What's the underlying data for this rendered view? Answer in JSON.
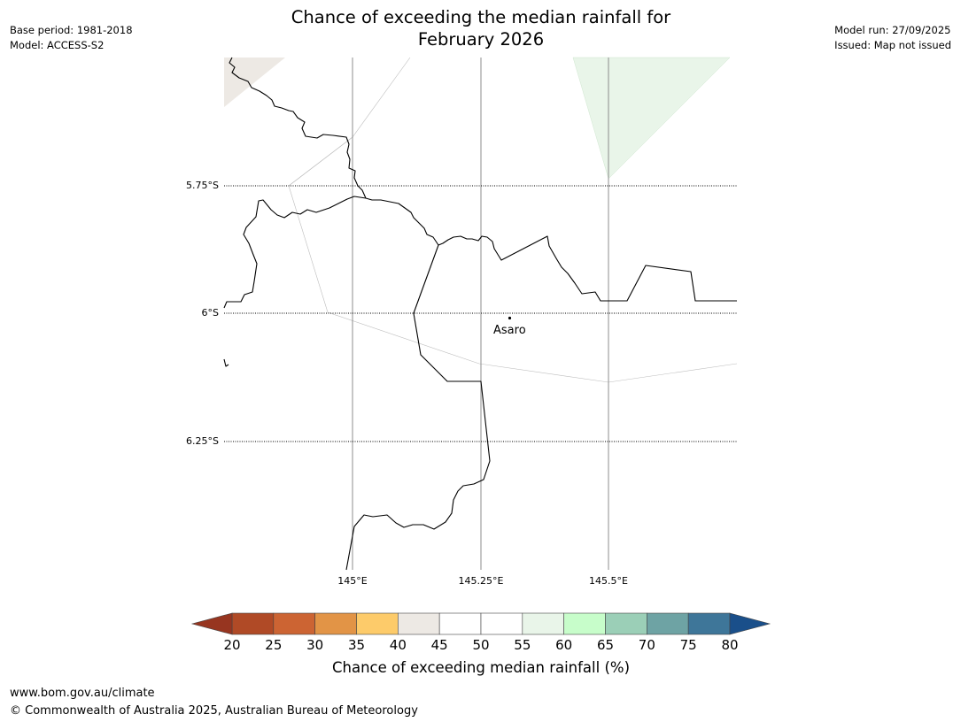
{
  "header": {
    "title_line1": "Chance of exceeding the median rainfall for",
    "title_line2": "February 2026",
    "base_period": "Base period: 1981-2018",
    "model": "Model: ACCESS-S2",
    "model_run": "Model run: 27/09/2025",
    "issued": "Issued: Map not issued"
  },
  "map": {
    "lat_labels": [
      "5.75°S",
      "6°S",
      "6.25°S"
    ],
    "lon_labels": [
      "145°E",
      "145.25°E",
      "145.5°E"
    ],
    "place": "Asaro",
    "colors": {
      "coast": "#000000",
      "gridline": "#8c8c8c",
      "region_light_green": "#e9f5e9",
      "region_light_tan": "#ede9e4"
    }
  },
  "colorbar": {
    "ticks": [
      "20",
      "25",
      "30",
      "35",
      "40",
      "45",
      "50",
      "55",
      "60",
      "65",
      "70",
      "75",
      "80"
    ],
    "label": "Chance of exceeding median rainfall (%)",
    "under_color": "#973520",
    "over_color": "#1a4f8a",
    "colors": [
      "#b04a26",
      "#cc6433",
      "#e29446",
      "#fdcb6a",
      "#ede9e4",
      "#ffffff",
      "#ffffff",
      "#e9f5e9",
      "#c7fdca",
      "#9bcfb7",
      "#6ea3a4",
      "#3e7699"
    ]
  },
  "footer": {
    "url": "www.bom.gov.au/climate",
    "copyright": "© Commonwealth of Australia 2025, Australian Bureau of Meteorology"
  }
}
